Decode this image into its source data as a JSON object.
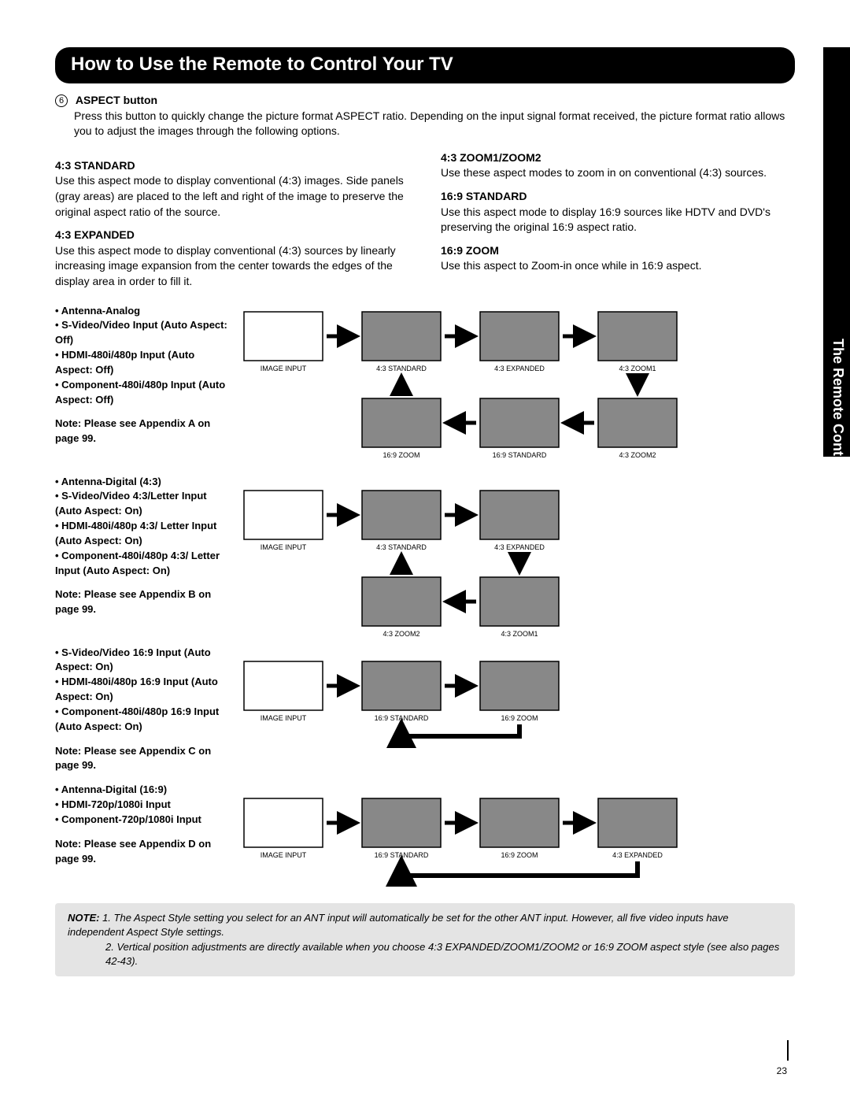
{
  "title": "How to Use the Remote to Control Your TV",
  "sideTab": "The Remote Control",
  "sectionNumber": "6",
  "sectionHead": "ASPECT button",
  "sectionBody": "Press this button to quickly change the picture format ASPECT ratio. Depending on the input signal format received, the picture format ratio allows you to adjust the images through the following options.",
  "modes": {
    "m1": {
      "h": "4:3 STANDARD",
      "t": "Use this aspect mode to display conventional (4:3) images. Side panels (gray areas) are placed to the left and right of the image to preserve the original aspect ratio of the source."
    },
    "m2": {
      "h": "4:3 EXPANDED",
      "t": "Use this aspect mode to display conventional (4:3) sources by linearly increasing image expansion from the center towards the edges of the display area in order to fill it."
    },
    "m3": {
      "h": "4:3 ZOOM1/ZOOM2",
      "t": "Use these aspect modes to zoom in on conventional (4:3) sources."
    },
    "m4": {
      "h": "16:9 STANDARD",
      "t": "Use this aspect mode to display 16:9 sources like HDTV and DVD's preserving the original 16:9 aspect ratio."
    },
    "m5": {
      "h": "16:9 ZOOM",
      "t": "Use this aspect to Zoom-in once while in 16:9 aspect."
    }
  },
  "groupA": {
    "items": [
      "Antenna-Analog",
      "S-Video/Video Input (Auto Aspect: Off)",
      "HDMI-480i/480p Input (Auto Aspect: Off)",
      "Component-480i/480p Input (Auto Aspect: Off)"
    ],
    "note": "Note:  Please see Appendix A on page 99.",
    "caps": [
      "IMAGE INPUT",
      "4:3 STANDARD",
      "4:3 EXPANDED",
      "4:3 ZOOM1",
      "16:9 ZOOM",
      "16:9 STANDARD",
      "4:3 ZOOM2"
    ]
  },
  "groupB": {
    "items": [
      "Antenna-Digital (4:3)",
      "S-Video/Video 4:3/Letter Input (Auto Aspect: On)",
      "HDMI-480i/480p 4:3/ Letter Input (Auto Aspect: On)",
      "Component-480i/480p 4:3/ Letter Input (Auto Aspect: On)"
    ],
    "note": "Note:  Please see Appendix B on page 99.",
    "caps": [
      "IMAGE INPUT",
      "4:3 STANDARD",
      "4:3 EXPANDED",
      "4:3 ZOOM2",
      "4:3 ZOOM1"
    ]
  },
  "groupC": {
    "items": [
      "S-Video/Video 16:9 Input (Auto Aspect: On)",
      "HDMI-480i/480p 16:9 Input (Auto Aspect: On)",
      "Component-480i/480p 16:9 Input (Auto Aspect: On)"
    ],
    "note": "Note:  Please see Appendix C on page 99.",
    "caps": [
      "IMAGE INPUT",
      "16:9 STANDARD",
      "16:9 ZOOM"
    ]
  },
  "groupD": {
    "items": [
      "Antenna-Digital (16:9)",
      "HDMI-720p/1080i Input",
      "Component-720p/1080i Input"
    ],
    "note": "Note:  Please see Appendix D on page 99.",
    "caps": [
      "IMAGE INPUT",
      "16:9 STANDARD",
      "16:9 ZOOM",
      "4:3 EXPANDED"
    ]
  },
  "footnote": {
    "label": "NOTE:",
    "n1": "1.  The Aspect Style setting you select for an ANT input will automatically be set for the other ANT input. However, all five video inputs have independent Aspect Style settings.",
    "n2": "2.  Vertical position adjustments are directly available when you choose 4:3 EXPANDED/ZOOM1/ZOOM2 or 16:9 ZOOM aspect style (see also pages 42-43)."
  },
  "pageNum": "23",
  "colors": {
    "titleBg": "#000000",
    "titleFg": "#ffffff",
    "noteBg": "#e4e4e4",
    "thumb": "#888888"
  }
}
